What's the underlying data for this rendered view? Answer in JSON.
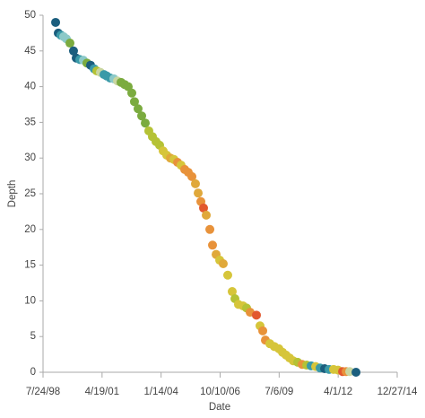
{
  "chart_data": {
    "type": "scatter",
    "x_label": "Date",
    "y_label": "Depth",
    "xlim": [
      36000,
      42000
    ],
    "xticks": [
      {
        "value": 36000,
        "label": "7/24/98"
      },
      {
        "value": 37000,
        "label": "4/19/01"
      },
      {
        "value": 38000,
        "label": "1/14/04"
      },
      {
        "value": 39000,
        "label": "10/10/06"
      },
      {
        "value": 40000,
        "label": "7/6/09"
      },
      {
        "value": 41000,
        "label": "4/1/12"
      },
      {
        "value": 42000,
        "label": "12/27/14"
      }
    ],
    "ylim": [
      0,
      50
    ],
    "yticks": [
      0,
      5,
      10,
      15,
      20,
      25,
      30,
      35,
      40,
      45,
      50
    ],
    "x": [
      36213,
      36258,
      36304,
      36349,
      36395,
      36456,
      36516,
      36562,
      36623,
      36684,
      36744,
      36805,
      36866,
      36911,
      36972,
      37033,
      37078,
      37139,
      37200,
      37261,
      37322,
      37382,
      37443,
      37504,
      37549,
      37610,
      37671,
      37732,
      37792,
      37853,
      37914,
      37975,
      38035,
      38096,
      38157,
      38218,
      38279,
      38339,
      38400,
      38461,
      38522,
      38582,
      38628,
      38674,
      38719,
      38765,
      38826,
      38871,
      38932,
      38993,
      39053,
      39129,
      39205,
      39251,
      39311,
      39387,
      39448,
      39509,
      39615,
      39676,
      39722,
      39767,
      39843,
      39919,
      39995,
      40056,
      40117,
      40177,
      40238,
      40314,
      40390,
      40466,
      40542,
      40618,
      40694,
      40770,
      40846,
      40922,
      40998,
      41074,
      41135,
      41195,
      41302
    ],
    "y": [
      49.0,
      47.5,
      47.2,
      47.0,
      46.7,
      46.1,
      45.0,
      44.0,
      43.8,
      43.7,
      43.3,
      43.0,
      42.5,
      42.2,
      42.0,
      41.7,
      41.5,
      41.2,
      41.1,
      40.8,
      40.6,
      40.3,
      40.0,
      39.1,
      37.9,
      36.9,
      35.9,
      34.9,
      33.8,
      33.0,
      32.3,
      31.8,
      31.0,
      30.4,
      30.0,
      29.8,
      29.4,
      29.0,
      28.4,
      28.0,
      27.4,
      26.4,
      25.1,
      23.9,
      23.0,
      22.0,
      20.0,
      17.8,
      16.5,
      15.7,
      15.2,
      13.6,
      11.3,
      10.3,
      9.5,
      9.3,
      9.0,
      8.4,
      8.0,
      6.5,
      5.8,
      4.5,
      4.0,
      3.6,
      3.3,
      2.8,
      2.4,
      2.0,
      1.6,
      1.4,
      1.1,
      1.0,
      0.9,
      0.8,
      0.6,
      0.5,
      0.4,
      0.4,
      0.3,
      0.1,
      0.1,
      0.1,
      0.0
    ],
    "colors": [
      "#1b5e7e",
      "#1b5e7e",
      "#3a9aa8",
      "#8cc9c8",
      "#8cc9c8",
      "#7bab3f",
      "#1b5e7e",
      "#1b5e7e",
      "#3a9aa8",
      "#8cc9c8",
      "#7bab3f",
      "#1b5e7e",
      "#3a9aa8",
      "#b5c235",
      "#c9d6a0",
      "#3a9aa8",
      "#3a9aa8",
      "#3a9aa8",
      "#8cc9c8",
      "#c9d6a0",
      "#7bab3f",
      "#7bab3f",
      "#7bab3f",
      "#7bab3f",
      "#7bab3f",
      "#7bab3f",
      "#7bab3f",
      "#7bab3f",
      "#b5c235",
      "#b5c235",
      "#b5c235",
      "#b5c235",
      "#d6c53a",
      "#d6c53a",
      "#e0a83a",
      "#d6c53a",
      "#e8923a",
      "#d6c53a",
      "#e8923a",
      "#e8923a",
      "#e8923a",
      "#e0a83a",
      "#e0a83a",
      "#e8923a",
      "#e2582e",
      "#e0a83a",
      "#e8923a",
      "#e8923a",
      "#e0a83a",
      "#d6c53a",
      "#e0a83a",
      "#d6c53a",
      "#d6c53a",
      "#b5c235",
      "#d6c53a",
      "#d6c53a",
      "#b5c235",
      "#e8923a",
      "#e2582e",
      "#d6c53a",
      "#e8923a",
      "#e8923a",
      "#d6c53a",
      "#d6c53a",
      "#d6c53a",
      "#d6c53a",
      "#d6c53a",
      "#d6c53a",
      "#d6c53a",
      "#b5c235",
      "#e8923a",
      "#b5c235",
      "#3a9aa8",
      "#d6c53a",
      "#3a9aa8",
      "#1b5e7e",
      "#3a9aa8",
      "#d6c53a",
      "#d6c53a",
      "#e2582e",
      "#e8923a",
      "#c9d6a0",
      "#1b5e7e"
    ]
  }
}
